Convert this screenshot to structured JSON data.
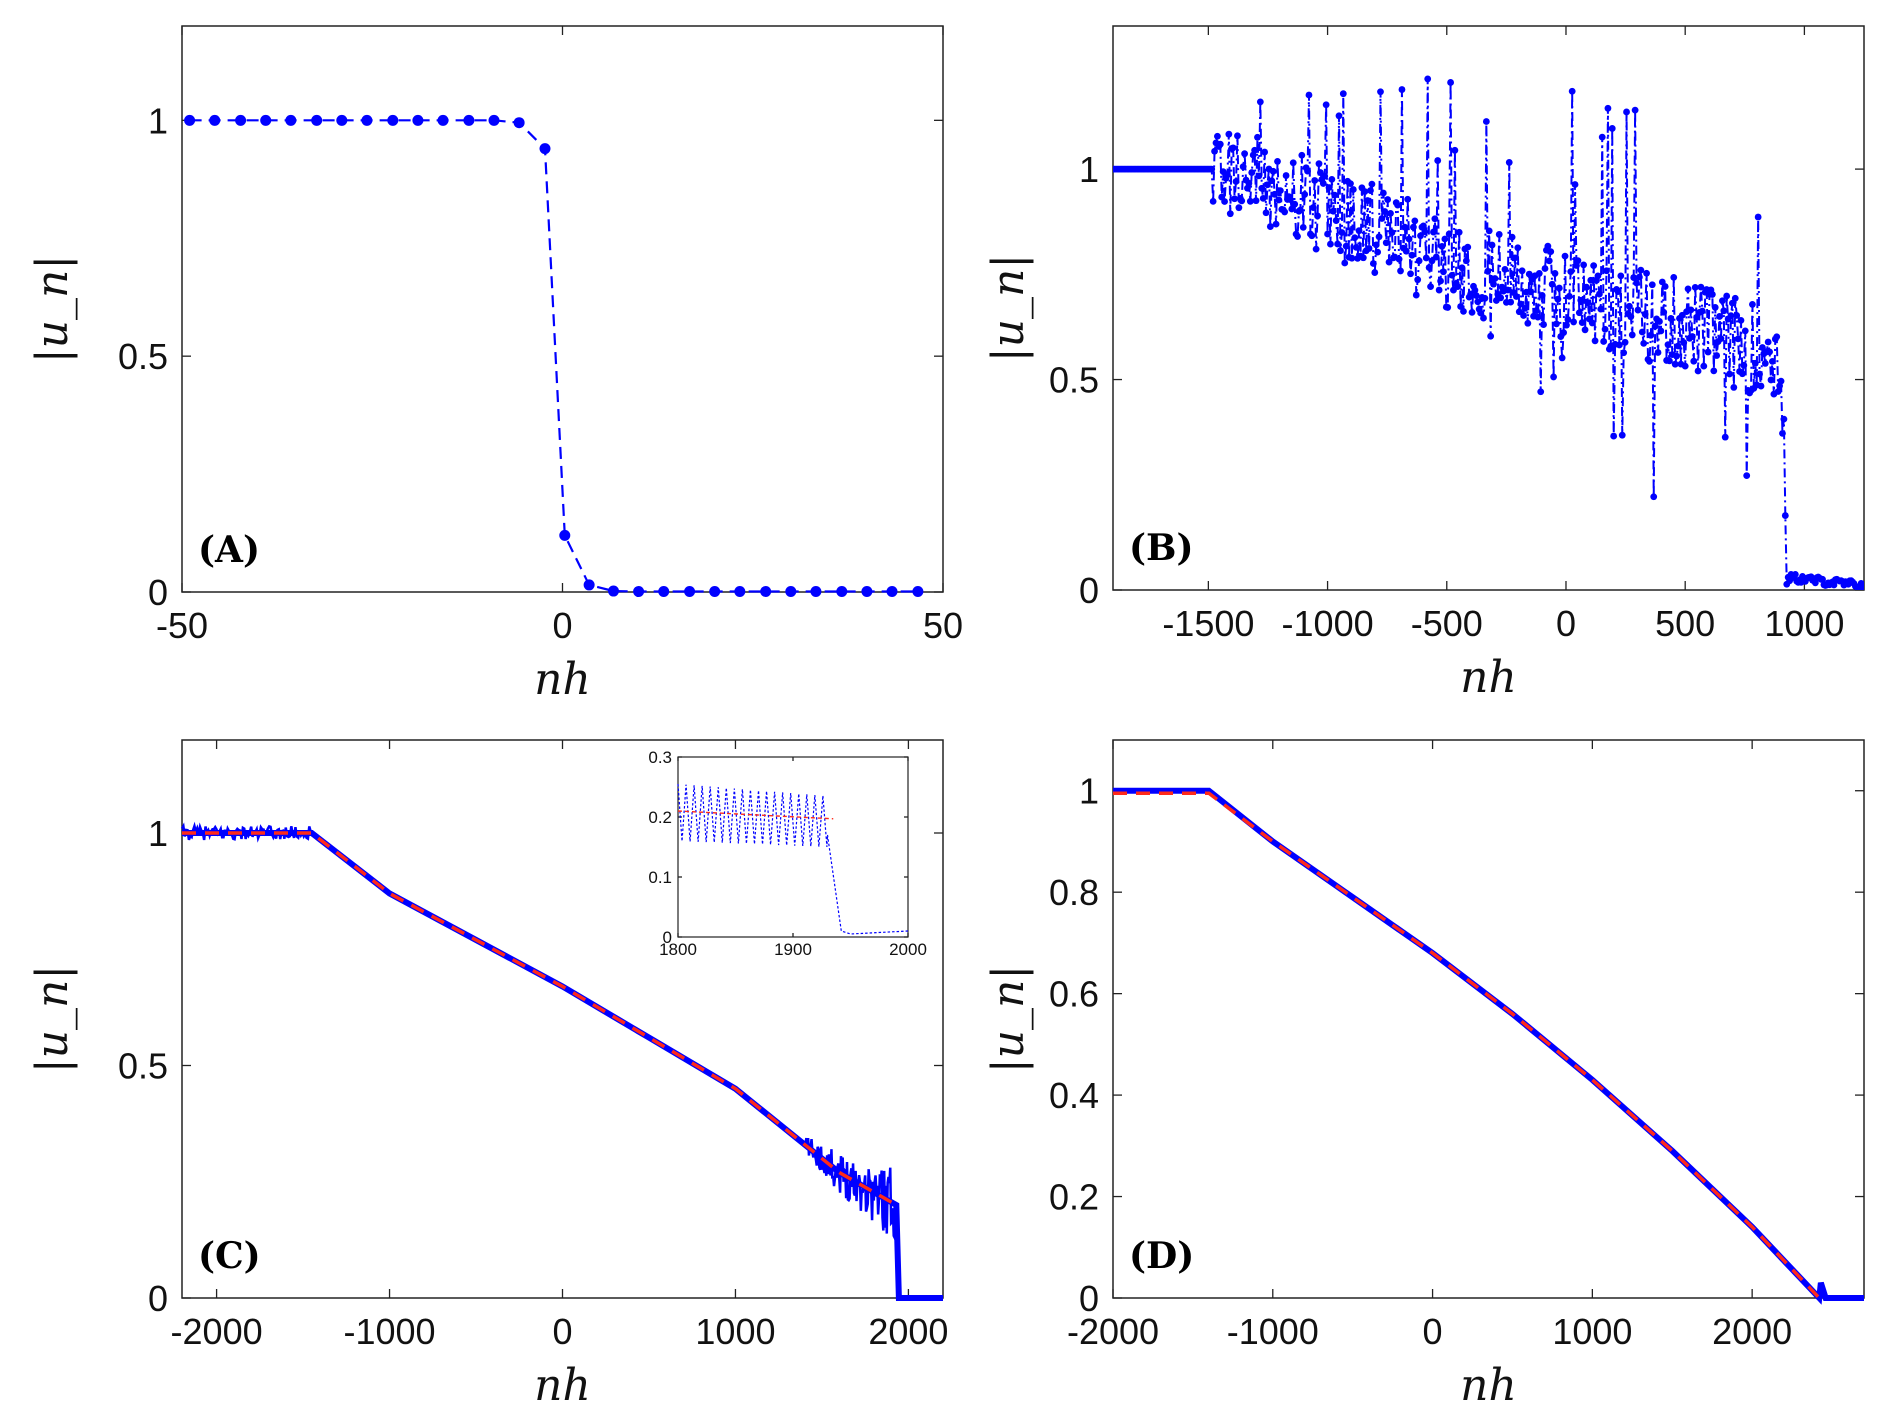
{
  "chart_data": [
    {
      "panel": "(A)",
      "type": "line",
      "xlabel": "nh",
      "ylabel": "|u_n|",
      "xlim": [
        -50,
        50
      ],
      "ylim": [
        0,
        1.2
      ],
      "xticks": [
        -50,
        0,
        50
      ],
      "yticks": [
        0,
        0.5,
        1
      ],
      "xtick_labels": [
        "-50",
        "0",
        "50"
      ],
      "ytick_labels": [
        "0",
        "0.5",
        "1"
      ],
      "grid": false,
      "series": [
        {
          "style": "dashed line with dot markers",
          "color": "#0000ff",
          "x": [
            -49,
            -45.7,
            -42.3,
            -39,
            -35.7,
            -32.3,
            -29,
            -25.7,
            -22.3,
            -19,
            -15.7,
            -12.3,
            -9,
            -5.7,
            -2.3,
            0.3,
            3.5,
            6.7,
            10,
            13.3,
            16.7,
            20,
            23.3,
            26.7,
            30,
            33.3,
            36.7,
            40,
            43.3,
            46.7
          ],
          "y": [
            1,
            1,
            1,
            1,
            1,
            1,
            1,
            1,
            1,
            1,
            1,
            1,
            1,
            0.995,
            0.94,
            0.12,
            0.015,
            0.002,
            0.001,
            0.001,
            0.001,
            0.001,
            0.001,
            0.001,
            0.001,
            0.001,
            0.001,
            0.001,
            0.001,
            0.001
          ]
        }
      ]
    },
    {
      "panel": "(B)",
      "type": "line",
      "xlabel": "nh",
      "ylabel": "|u_n|",
      "xlim": [
        -1900,
        1250
      ],
      "ylim": [
        0,
        1.34
      ],
      "xticks": [
        -1500,
        -1000,
        -500,
        0,
        500,
        1000
      ],
      "yticks": [
        0,
        0.5,
        1
      ],
      "xtick_labels": [
        "-1500",
        "-1000",
        "-500",
        "0",
        "500",
        "1000"
      ],
      "ytick_labels": [
        "0",
        "0.5",
        "1"
      ],
      "grid": false,
      "series": [
        {
          "style": "dash-dot line with dot markers, strongly oscillating",
          "color": "#0000ff",
          "envelope": {
            "x": [
              -1900,
              -1500,
              -1400,
              -1000,
              -500,
              0,
              500,
              900,
              930,
              1250
            ],
            "mean": [
              1,
              1,
              1,
              0.9,
              0.78,
              0.7,
              0.63,
              0.55,
              0.03,
              0.01
            ],
            "max": [
              1,
              1,
              1.16,
              1.19,
              1.22,
              1.2,
              1.23,
              0.95,
              0.05,
              0.02
            ],
            "min": [
              1,
              1,
              0.97,
              0.82,
              0.65,
              0.32,
              0.13,
              0.2,
              0.0,
              0.0
            ]
          }
        }
      ]
    },
    {
      "panel": "(C)",
      "type": "line",
      "xlabel": "nh",
      "ylabel": "|u_n|",
      "xlim": [
        -2200,
        2200
      ],
      "ylim": [
        0,
        1.2
      ],
      "xticks": [
        -2000,
        -1000,
        0,
        1000,
        2000
      ],
      "yticks": [
        0,
        0.5,
        1
      ],
      "xtick_labels": [
        "-2000",
        "-1000",
        "0",
        "1000",
        "2000"
      ],
      "ytick_labels": [
        "0",
        "0.5",
        "1"
      ],
      "grid": false,
      "series": [
        {
          "style": "blue numerical profile",
          "color": "#0000ff",
          "x": [
            -2200,
            -1450,
            -1000,
            -500,
            0,
            500,
            1000,
            1400,
            1600,
            1930,
            1945,
            2200
          ],
          "y": [
            1,
            1,
            0.87,
            0.77,
            0.67,
            0.56,
            0.45,
            0.33,
            0.27,
            0.2,
            0,
            0
          ]
        },
        {
          "style": "red dashed theory",
          "color": "#ff2a1a",
          "x": [
            -2200,
            -1450,
            -1000,
            -500,
            0,
            500,
            1000,
            1400,
            1600,
            1930
          ],
          "y": [
            1,
            1,
            0.87,
            0.77,
            0.67,
            0.56,
            0.45,
            0.33,
            0.27,
            0.2
          ]
        }
      ],
      "inset": {
        "xlim": [
          1800,
          2000
        ],
        "ylim": [
          0,
          0.3
        ],
        "xticks": [
          1800,
          1900,
          2000
        ],
        "yticks": [
          0,
          0.1,
          0.2,
          0.3
        ],
        "xtick_labels": [
          "1800",
          "1900",
          "2000"
        ],
        "ytick_labels": [
          "0",
          "0.1",
          "0.2",
          "0.3"
        ],
        "series": [
          {
            "style": "blue dotted oscillation",
            "color": "#0000ff",
            "x_start": 1800,
            "x_end": 1930,
            "oscillation_period": 7,
            "max": [
              0.255,
              0.235
            ],
            "min": [
              0.16,
              0.15
            ],
            "tail": {
              "x": [
                1930,
                1942,
                1950,
                1980,
                2000
              ],
              "y": [
                0.17,
                0.01,
                0.005,
                0.008,
                0.01
              ]
            }
          },
          {
            "style": "red dashed",
            "color": "#ff2a1a",
            "x": [
              1800,
              1935
            ],
            "y": [
              0.21,
              0.197
            ]
          }
        ]
      }
    },
    {
      "panel": "(D)",
      "type": "line",
      "xlabel": "nh",
      "ylabel": "|u_n|",
      "xlim": [
        -2000,
        2700
      ],
      "ylim": [
        0,
        1.1
      ],
      "xticks": [
        -2000,
        -1000,
        0,
        1000,
        2000
      ],
      "yticks": [
        0,
        0.2,
        0.4,
        0.6,
        0.8,
        1
      ],
      "xtick_labels": [
        "-2000",
        "-1000",
        "0",
        "1000",
        "2000"
      ],
      "ytick_labels": [
        "0",
        "0.2",
        "0.4",
        "0.6",
        "0.8",
        "1"
      ],
      "grid": false,
      "series": [
        {
          "style": "blue numerical profile",
          "color": "#0000ff",
          "x": [
            -2000,
            -1400,
            -1000,
            -500,
            0,
            500,
            1000,
            1500,
            2000,
            2300,
            2420,
            2430,
            2460,
            2700
          ],
          "y": [
            1,
            1,
            0.9,
            0.79,
            0.68,
            0.56,
            0.43,
            0.29,
            0.14,
            0.04,
            0.0,
            0.03,
            0.0,
            0.0
          ]
        },
        {
          "style": "red dashed theory",
          "color": "#ff2a1a",
          "x": [
            -2000,
            -1400,
            -1000,
            -500,
            0,
            500,
            1000,
            1500,
            2000,
            2300,
            2420
          ],
          "y": [
            0.995,
            0.995,
            0.9,
            0.79,
            0.68,
            0.56,
            0.43,
            0.29,
            0.14,
            0.04,
            0.0
          ]
        }
      ]
    }
  ]
}
